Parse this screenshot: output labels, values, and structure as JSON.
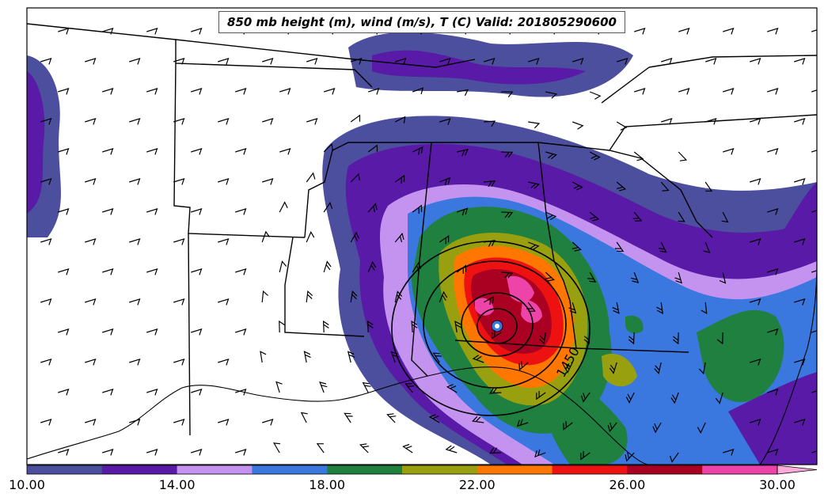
{
  "title": "850 mb height (m), wind (m/s), T (C) Valid: 201805290600",
  "contour_label": "1450",
  "colorbar": {
    "colors": [
      "#4b4f9e",
      "#5a1aa8",
      "#c493f0",
      "#3a78e0",
      "#1f8040",
      "#99a010",
      "#ff7700",
      "#ee1111",
      "#aa0022",
      "#ee44aa",
      "#ffaadd"
    ],
    "tick_labels": [
      "10.00",
      "14.00",
      "18.00",
      "22.00",
      "26.00",
      "30.00"
    ]
  }
}
